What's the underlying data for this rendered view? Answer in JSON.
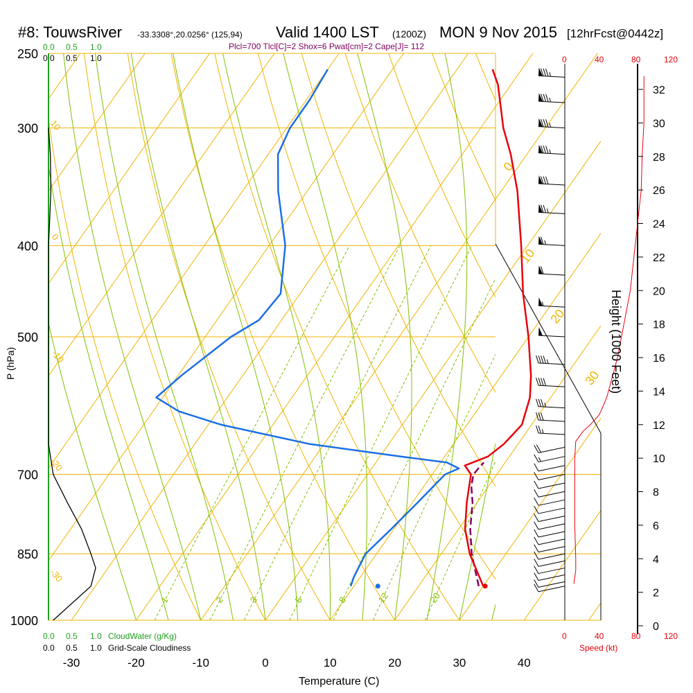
{
  "header": {
    "station": "#8: TouwsRiver",
    "coords": "-33.3308°,20.0256° (125,94)",
    "valid": "Valid 1400 LST",
    "utc": "(1200Z)",
    "date": "MON 9 Nov 2015",
    "forecast": "[12hrFcst@0442z]",
    "indices": "Plcl=700 Tlcl[C]=2 Shox=6 Pwat[cm]=2 Cape[J]= 112"
  },
  "colors": {
    "temperature": "#e8000b",
    "dewpoint": "#1a6fe6",
    "parcel": "#800060",
    "isotherm": "#f0b400",
    "dry_adiabat": "#f0b400",
    "moist_adiabat": "#80c000",
    "mixing_ratio": "#80c000",
    "cloudwater": "#20a020",
    "wind_speed": "#e8000b"
  },
  "cloudwater_scale": {
    "top_ticks": [
      "0.0",
      "0.5",
      "1.0"
    ],
    "bottom_ticks": [
      "0.0",
      "0.5",
      "1.0"
    ],
    "label": "CloudWater (g/Kg)"
  },
  "cloudiness_scale": {
    "top_ticks": [
      "0.0",
      "0.5",
      "1.0"
    ],
    "bottom_ticks": [
      "0.0",
      "0.5",
      "1.0"
    ],
    "label": "Grid-Scale Cloudiness"
  },
  "wind_speed_scale": {
    "ticks": [
      "0",
      "40",
      "80",
      "120"
    ],
    "label": "Speed (kt)"
  },
  "chart_data": {
    "type": "skew-t log-p sounding",
    "xlabel": "Temperature (C)",
    "ylabel": "P (hPa)",
    "y2label": "Height (1000 Feet)",
    "x_ticks": [
      -30,
      -20,
      -10,
      0,
      10,
      20,
      30,
      40
    ],
    "p_ticks": [
      250,
      300,
      400,
      500,
      700,
      850,
      1000
    ],
    "height_ticks": [
      0,
      2,
      4,
      6,
      8,
      10,
      12,
      14,
      16,
      18,
      20,
      22,
      24,
      26,
      28,
      30,
      32
    ],
    "xlim": [
      -33,
      47
    ],
    "plim": [
      1000,
      250
    ],
    "temperature_profile": [
      {
        "p": 920,
        "t": 30.0
      },
      {
        "p": 850,
        "t": 24.4
      },
      {
        "p": 800,
        "t": 21.0
      },
      {
        "p": 750,
        "t": 18.4
      },
      {
        "p": 700,
        "t": 16.0
      },
      {
        "p": 685,
        "t": 14.1
      },
      {
        "p": 670,
        "t": 16.7
      },
      {
        "p": 650,
        "t": 17.8
      },
      {
        "p": 620,
        "t": 18.5
      },
      {
        "p": 580,
        "t": 16.8
      },
      {
        "p": 550,
        "t": 14.6
      },
      {
        "p": 500,
        "t": 10.0
      },
      {
        "p": 450,
        "t": 4.5
      },
      {
        "p": 400,
        "t": -1.0
      },
      {
        "p": 350,
        "t": -7.5
      },
      {
        "p": 320,
        "t": -12.5
      },
      {
        "p": 300,
        "t": -16.5
      },
      {
        "p": 270,
        "t": -22.0
      },
      {
        "p": 260,
        "t": -24.5
      }
    ],
    "dewpoint_profile": [
      {
        "p": 920,
        "d": 9.5
      },
      {
        "p": 900,
        "d": 9.0
      },
      {
        "p": 850,
        "d": 8.3
      },
      {
        "p": 800,
        "d": 9.6
      },
      {
        "p": 750,
        "d": 10.8
      },
      {
        "p": 700,
        "d": 12.0
      },
      {
        "p": 690,
        "d": 13.5
      },
      {
        "p": 680,
        "d": 11.0
      },
      {
        "p": 670,
        "d": 3.2
      },
      {
        "p": 650,
        "d": -12.2
      },
      {
        "p": 620,
        "d": -28.0
      },
      {
        "p": 600,
        "d": -36.0
      },
      {
        "p": 580,
        "d": -41.0
      },
      {
        "p": 550,
        "d": -39.5
      },
      {
        "p": 500,
        "d": -36.0
      },
      {
        "p": 480,
        "d": -33.5
      },
      {
        "p": 450,
        "d": -33.0
      },
      {
        "p": 400,
        "d": -37.5
      },
      {
        "p": 350,
        "d": -44.5
      },
      {
        "p": 320,
        "d": -48.5
      },
      {
        "p": 300,
        "d": -49.5
      },
      {
        "p": 280,
        "d": -49.5
      },
      {
        "p": 260,
        "d": -50.0
      }
    ],
    "parcel_profile": [
      {
        "p": 920,
        "t": 29.3
      },
      {
        "p": 850,
        "t": 24.7
      },
      {
        "p": 800,
        "t": 21.8
      },
      {
        "p": 750,
        "t": 19.3
      },
      {
        "p": 720,
        "t": 17.3
      },
      {
        "p": 700,
        "t": 16.4
      },
      {
        "p": 690,
        "t": 16.5
      },
      {
        "p": 680,
        "t": 16.7
      }
    ],
    "surface_temperature": {
      "p": 920,
      "t": 30.3
    },
    "surface_dewpoint": {
      "p": 920,
      "d": 13.7
    },
    "isotherm_labels": [
      {
        "t": 0,
        "text": "0"
      },
      {
        "t": 10,
        "text": "10"
      },
      {
        "t": 20,
        "text": "20"
      },
      {
        "t": 30,
        "text": "30"
      }
    ],
    "dry_adiabat_labels": [
      {
        "text": "10"
      },
      {
        "text": "0"
      },
      {
        "text": "-10"
      },
      {
        "text": "-20"
      },
      {
        "text": "-30"
      }
    ],
    "mixing_ratio_labels": [
      "1",
      "2",
      "3",
      "5",
      "8",
      "12",
      "20"
    ],
    "mixing_ratios": [
      1,
      2,
      3,
      5,
      8,
      12,
      20
    ],
    "dry_adiabats_theta_c": [
      -10,
      0,
      10,
      20,
      30,
      40,
      50,
      60,
      70,
      80,
      90,
      100,
      110,
      120,
      130
    ],
    "moist_adiabats_start_c": [
      -20,
      -15,
      -10,
      -5,
      0,
      5,
      10,
      15,
      20,
      25,
      30,
      35
    ],
    "wind_speed_profile_kt": [
      {
        "h": 2.5,
        "s": 10
      },
      {
        "h": 3.3,
        "s": 12
      },
      {
        "h": 4.0,
        "s": 12
      },
      {
        "h": 6.0,
        "s": 11
      },
      {
        "h": 8.0,
        "s": 11
      },
      {
        "h": 10.0,
        "s": 11
      },
      {
        "h": 11.0,
        "s": 12
      },
      {
        "h": 11.6,
        "s": 20
      },
      {
        "h": 12.0,
        "s": 28
      },
      {
        "h": 12.6,
        "s": 38
      },
      {
        "h": 13.6,
        "s": 46
      },
      {
        "h": 16.0,
        "s": 58
      },
      {
        "h": 20.0,
        "s": 72
      },
      {
        "h": 24.0,
        "s": 80
      },
      {
        "h": 26.0,
        "s": 84
      },
      {
        "h": 28.0,
        "s": 85
      },
      {
        "h": 30.0,
        "s": 87
      },
      {
        "h": 32.8,
        "s": 87
      }
    ],
    "cloud_fraction_profile": [
      {
        "p": 1000,
        "v": 0.1
      },
      {
        "p": 920,
        "v": 0.9
      },
      {
        "p": 880,
        "v": 1.0
      },
      {
        "p": 850,
        "v": 0.9
      },
      {
        "p": 800,
        "v": 0.7
      },
      {
        "p": 750,
        "v": 0.4
      },
      {
        "p": 700,
        "v": 0.1
      },
      {
        "p": 650,
        "v": 0.0
      },
      {
        "p": 500,
        "v": 0.0
      },
      {
        "p": 400,
        "v": 0.0
      },
      {
        "p": 380,
        "v": 0.02
      },
      {
        "p": 350,
        "v": 0.05
      },
      {
        "p": 320,
        "v": 0.04
      },
      {
        "p": 300,
        "v": 0.0
      }
    ],
    "wind_barbs": [
      {
        "p": 265,
        "speed": 85
      },
      {
        "p": 282,
        "speed": 85
      },
      {
        "p": 300,
        "speed": 85
      },
      {
        "p": 320,
        "speed": 85
      },
      {
        "p": 345,
        "speed": 80
      },
      {
        "p": 370,
        "speed": 75
      },
      {
        "p": 400,
        "speed": 65
      },
      {
        "p": 430,
        "speed": 60
      },
      {
        "p": 465,
        "speed": 55
      },
      {
        "p": 500,
        "speed": 50
      },
      {
        "p": 535,
        "speed": 45
      },
      {
        "p": 565,
        "speed": 40
      },
      {
        "p": 595,
        "speed": 35
      },
      {
        "p": 615,
        "speed": 30
      },
      {
        "p": 635,
        "speed": 25
      },
      {
        "p": 655,
        "speed": 20
      },
      {
        "p": 670,
        "speed": 15
      },
      {
        "p": 685,
        "speed": 12
      },
      {
        "p": 700,
        "speed": 12
      },
      {
        "p": 715,
        "speed": 12
      },
      {
        "p": 730,
        "speed": 12
      },
      {
        "p": 745,
        "speed": 12
      },
      {
        "p": 760,
        "speed": 12
      },
      {
        "p": 775,
        "speed": 12
      },
      {
        "p": 790,
        "speed": 12
      },
      {
        "p": 805,
        "speed": 12
      },
      {
        "p": 820,
        "speed": 12
      },
      {
        "p": 835,
        "speed": 12
      },
      {
        "p": 850,
        "speed": 12
      },
      {
        "p": 865,
        "speed": 12
      },
      {
        "p": 880,
        "speed": 10
      },
      {
        "p": 895,
        "speed": 10
      },
      {
        "p": 910,
        "speed": 10
      },
      {
        "p": 920,
        "speed": 10
      }
    ]
  }
}
